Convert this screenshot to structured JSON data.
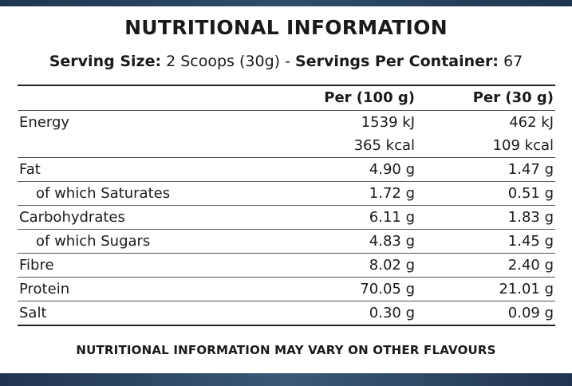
{
  "title": "NUTRITIONAL INFORMATION",
  "serving": {
    "size_label": "Serving Size:",
    "size_value": "2 Scoops (30g)",
    "separator": " - ",
    "per_container_label": "Servings Per Container:",
    "per_container_value": "67"
  },
  "table": {
    "headers": {
      "col1": "Per (100 g)",
      "col2": "Per (30 g)"
    },
    "rows": [
      {
        "label": "Energy",
        "col1": "1539 kJ",
        "col2": "462 kJ"
      },
      {
        "label": "",
        "col1": "365 kcal",
        "col2": "109 kcal"
      },
      {
        "label": "Fat",
        "col1": "4.90 g",
        "col2": "1.47 g"
      },
      {
        "label": "of which Saturates",
        "col1": "1.72 g",
        "col2": "0.51 g"
      },
      {
        "label": "Carbohydrates",
        "col1": "6.11 g",
        "col2": "1.83 g"
      },
      {
        "label": "of which Sugars",
        "col1": "4.83 g",
        "col2": "1.45 g"
      },
      {
        "label": "Fibre",
        "col1": "8.02 g",
        "col2": "2.40 g"
      },
      {
        "label": "Protein",
        "col1": "70.05 g",
        "col2": "21.01 g"
      },
      {
        "label": "Salt",
        "col1": "0.30 g",
        "col2": "0.09 g"
      }
    ]
  },
  "footer": "NUTRITIONAL INFORMATION MAY VARY ON OTHER FLAVOURS",
  "colors": {
    "band": "#1f3550",
    "text": "#1a1a1a"
  }
}
